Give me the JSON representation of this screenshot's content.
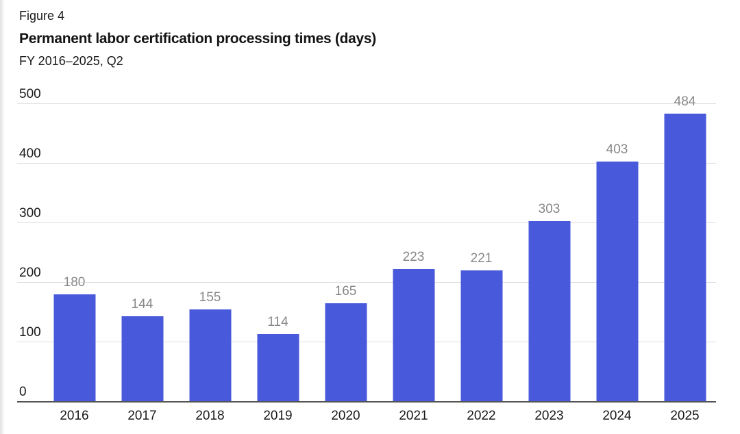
{
  "figure": {
    "label": "Figure 4",
    "title": "Permanent labor certification processing times (days)",
    "subtitle": "FY 2016–2025, Q2"
  },
  "chart_data": {
    "type": "bar",
    "figure_label": "Figure 4",
    "title": "Permanent labor certification processing times (days)",
    "subtitle": "FY 2016–2025, Q2",
    "categories": [
      "2016",
      "2017",
      "2018",
      "2019",
      "2020",
      "2021",
      "2022",
      "2023",
      "2024",
      "2025"
    ],
    "values": [
      180,
      144,
      155,
      114,
      165,
      223,
      221,
      303,
      403,
      484
    ],
    "xlabel": "",
    "ylabel": "",
    "ylim": [
      0,
      500
    ],
    "yticks": [
      0,
      100,
      200,
      300,
      400,
      500
    ],
    "grid": "horizontal",
    "legend_position": "none",
    "bar_color": "#4859db",
    "value_label_color": "#878787",
    "gridline_color": "#dcdcdc",
    "baseline_color": "#545454",
    "text_color": "#1a1a1a"
  }
}
